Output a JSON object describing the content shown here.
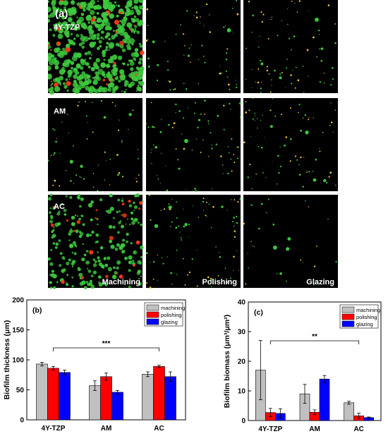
{
  "figure": {
    "panel_a_label": "(a)",
    "rows": [
      "4Y-TZP",
      "AM",
      "AC"
    ],
    "columns": [
      "Machining",
      "Polishing",
      "Glazing"
    ]
  },
  "colors": {
    "machining": "#c0c0c0",
    "polishing": "#ff0000",
    "glazing": "#0000ff",
    "live_bacteria": "#3cc83c",
    "dead_bacteria": "#ff3a1a"
  },
  "chart_data": [
    {
      "type": "bar",
      "panel": "(b)",
      "title": "",
      "xlabel": "",
      "ylabel": "Biofilm thickness (μm)",
      "ylim": [
        0,
        200
      ],
      "yticks": [
        0,
        50,
        100,
        150,
        200
      ],
      "categories": [
        "4Y-TZP",
        "AM",
        "AC"
      ],
      "legend": "top-right",
      "significance": "***",
      "series": [
        {
          "name": "machining",
          "values": [
            93,
            57,
            76
          ],
          "errors": [
            3,
            8,
            4
          ]
        },
        {
          "name": "polishing",
          "values": [
            86,
            72,
            89
          ],
          "errors": [
            3,
            6,
            2
          ]
        },
        {
          "name": "glazing",
          "values": [
            79,
            46,
            72
          ],
          "errors": [
            4,
            3,
            8
          ]
        }
      ]
    },
    {
      "type": "bar",
      "panel": "(c)",
      "title": "",
      "xlabel": "",
      "ylabel": "Biofilm biomass (μm³/μm²)",
      "ylim": [
        0,
        40
      ],
      "yticks": [
        0,
        10,
        20,
        30,
        40
      ],
      "categories": [
        "4Y-TZP",
        "AM",
        "AC"
      ],
      "legend": "top-right",
      "significance": "**",
      "series": [
        {
          "name": "machining",
          "values": [
            17,
            9,
            6
          ],
          "errors": [
            10,
            3.2,
            0.5
          ]
        },
        {
          "name": "polishing",
          "values": [
            2.7,
            2.8,
            1.6
          ],
          "errors": [
            1.4,
            0.8,
            0.9
          ]
        },
        {
          "name": "glazing",
          "values": [
            2.4,
            14,
            1.0
          ],
          "errors": [
            1.6,
            1.2,
            0.2
          ]
        }
      ]
    }
  ]
}
